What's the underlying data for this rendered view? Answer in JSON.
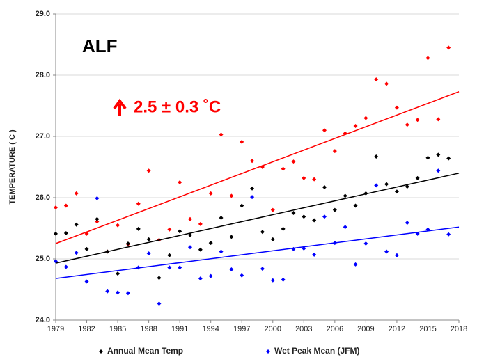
{
  "chart_data": {
    "type": "scatter",
    "y_label": "TEMPERATURE  ( C )",
    "annotations": [
      {
        "text": "ALF",
        "color": "#000000"
      },
      {
        "text": "2.5 ± 0.3 ˚C",
        "color": "#ff0000"
      }
    ],
    "x": [
      1979,
      1980,
      1981,
      1982,
      1983,
      1984,
      1985,
      1986,
      1987,
      1988,
      1989,
      1990,
      1991,
      1992,
      1993,
      1994,
      1995,
      1996,
      1997,
      1998,
      1999,
      2000,
      2001,
      2002,
      2003,
      2004,
      2005,
      2006,
      2007,
      2008,
      2009,
      2010,
      2011,
      2012,
      2013,
      2014,
      2015,
      2016,
      2017
    ],
    "series": [
      {
        "color": "#ff0000",
        "trend": [
          25.25,
          27.73
        ],
        "values": [
          25.84,
          25.87,
          26.07,
          25.41,
          25.61,
          25.12,
          25.55,
          25.24,
          25.9,
          26.44,
          25.31,
          25.48,
          26.25,
          25.65,
          25.57,
          26.07,
          27.03,
          26.03,
          26.91,
          26.6,
          26.5,
          25.8,
          26.47,
          26.59,
          26.32,
          26.3,
          27.1,
          26.76,
          27.05,
          27.17,
          27.3,
          27.93,
          27.86,
          27.47,
          27.19,
          27.27,
          28.28,
          27.28,
          28.45
        ]
      },
      {
        "name": "Annual Mean Temp",
        "color": "#000000",
        "trend": [
          24.93,
          26.4
        ],
        "values": [
          25.41,
          25.42,
          25.56,
          25.16,
          25.65,
          25.12,
          24.76,
          25.25,
          25.49,
          25.32,
          24.69,
          25.06,
          25.45,
          25.39,
          25.15,
          25.26,
          25.67,
          25.36,
          25.87,
          26.15,
          25.44,
          25.32,
          25.49,
          25.75,
          25.69,
          25.63,
          26.17,
          25.8,
          26.03,
          25.87,
          26.07,
          26.67,
          26.22,
          26.1,
          26.18,
          26.32,
          26.65,
          26.7,
          26.64
        ]
      },
      {
        "name": "Wet Peak Mean (JFM)",
        "color": "#0000ff",
        "trend": [
          24.68,
          25.52
        ],
        "values": [
          24.96,
          24.87,
          25.1,
          24.63,
          25.99,
          24.47,
          24.45,
          24.44,
          24.86,
          25.09,
          24.27,
          24.86,
          24.86,
          25.19,
          24.68,
          24.72,
          25.12,
          24.83,
          24.73,
          26.01,
          24.84,
          24.65,
          24.66,
          25.16,
          25.17,
          25.07,
          25.69,
          25.26,
          25.52,
          24.91,
          25.25,
          26.2,
          25.12,
          25.06,
          25.59,
          25.41,
          25.48,
          26.44,
          25.4
        ]
      }
    ],
    "xlim": [
      1979,
      2018
    ],
    "xticks": [
      1979,
      1982,
      1985,
      1988,
      1991,
      1994,
      1997,
      2000,
      2003,
      2006,
      2009,
      2012,
      2015,
      2018
    ],
    "ylim": [
      24,
      29
    ],
    "yticks": [
      {
        "value": 24,
        "label": "24.0"
      },
      {
        "value": 25,
        "label": "25.0"
      },
      {
        "value": 26,
        "label": "26.0"
      },
      {
        "value": 27,
        "label": "27.0"
      },
      {
        "value": 28,
        "label": "28.0"
      },
      {
        "value": 29,
        "label": "29.0"
      }
    ],
    "grid": true
  }
}
